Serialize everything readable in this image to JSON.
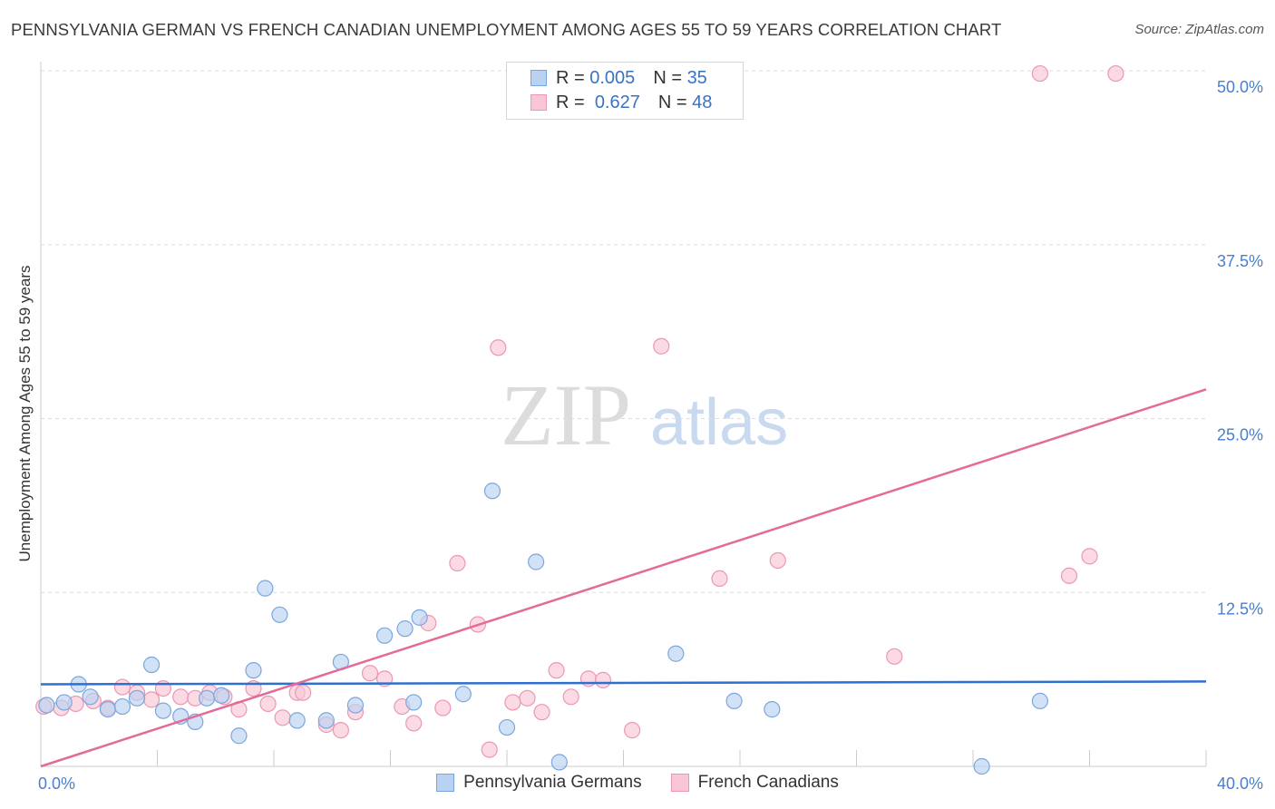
{
  "title": "PENNSYLVANIA GERMAN VS FRENCH CANADIAN UNEMPLOYMENT AMONG AGES 55 TO 59 YEARS CORRELATION CHART",
  "source": "Source: ZipAtlas.com",
  "watermark": {
    "zip": "ZIP",
    "atlas": "atlas"
  },
  "colors": {
    "blue_fill": "#b9d2f1",
    "blue_stroke": "#7ba6dc",
    "blue_line": "#2f6fcf",
    "pink_fill": "#f9c6d6",
    "pink_stroke": "#ec97b4",
    "pink_line": "#e36a99",
    "grid": "#dddddd",
    "tick_text": "#4a7fc9"
  },
  "legend": {
    "rows": [
      {
        "r_label": "R =",
        "r_value": "0.005",
        "n_label": "N =",
        "n_value": "35"
      },
      {
        "r_label": "R =",
        "r_value": "0.627",
        "n_label": "N =",
        "n_value": "48"
      }
    ]
  },
  "chart_data": {
    "type": "scatter",
    "xlabel": "",
    "ylabel": "Unemployment Among Ages 55 to 59 years",
    "xlim": [
      0,
      40
    ],
    "ylim": [
      0,
      50
    ],
    "x_tick_labels": [
      "0.0%",
      "40.0%"
    ],
    "y_ticks": [
      12.5,
      25.0,
      37.5,
      50.0
    ],
    "y_tick_labels": [
      "12.5%",
      "25.0%",
      "37.5%",
      "50.0%"
    ],
    "grid": "horizontal dashed",
    "legend_placement": "top-center and bottom",
    "series": [
      {
        "name": "Pennsylvania Germans",
        "trend": {
          "x0": 0,
          "y0": 5.9,
          "x1": 40,
          "y1": 6.1
        },
        "points": [
          [
            0.2,
            4.4
          ],
          [
            0.8,
            4.6
          ],
          [
            1.3,
            5.9
          ],
          [
            1.7,
            5.0
          ],
          [
            2.3,
            4.1
          ],
          [
            2.8,
            4.3
          ],
          [
            3.3,
            4.9
          ],
          [
            3.8,
            7.3
          ],
          [
            4.2,
            4.0
          ],
          [
            4.8,
            3.6
          ],
          [
            5.3,
            3.2
          ],
          [
            5.7,
            4.9
          ],
          [
            6.2,
            5.1
          ],
          [
            6.8,
            2.2
          ],
          [
            7.3,
            6.9
          ],
          [
            7.7,
            12.8
          ],
          [
            8.2,
            10.9
          ],
          [
            8.8,
            3.3
          ],
          [
            9.8,
            3.3
          ],
          [
            10.3,
            7.5
          ],
          [
            10.8,
            4.4
          ],
          [
            11.8,
            9.4
          ],
          [
            12.5,
            9.9
          ],
          [
            12.8,
            4.6
          ],
          [
            13.0,
            10.7
          ],
          [
            14.5,
            5.2
          ],
          [
            15.5,
            19.8
          ],
          [
            16.0,
            2.8
          ],
          [
            17.0,
            14.7
          ],
          [
            17.8,
            0.3
          ],
          [
            21.8,
            8.1
          ],
          [
            23.8,
            4.7
          ],
          [
            25.1,
            4.1
          ],
          [
            32.3,
            0.0
          ],
          [
            34.3,
            4.7
          ]
        ]
      },
      {
        "name": "French Canadians",
        "trend": {
          "x0": 0,
          "y0": -0.3,
          "x1": 40,
          "y1": 27.1
        },
        "points": [
          [
            0.1,
            4.3
          ],
          [
            0.7,
            4.2
          ],
          [
            1.2,
            4.5
          ],
          [
            1.8,
            4.7
          ],
          [
            2.3,
            4.2
          ],
          [
            2.8,
            5.7
          ],
          [
            3.3,
            5.3
          ],
          [
            3.8,
            4.8
          ],
          [
            4.2,
            5.6
          ],
          [
            4.8,
            5.0
          ],
          [
            5.3,
            4.9
          ],
          [
            5.8,
            5.3
          ],
          [
            6.3,
            5.0
          ],
          [
            6.8,
            4.1
          ],
          [
            7.3,
            5.6
          ],
          [
            7.8,
            4.5
          ],
          [
            8.3,
            3.5
          ],
          [
            8.8,
            5.3
          ],
          [
            9.0,
            5.3
          ],
          [
            9.8,
            3.0
          ],
          [
            10.3,
            2.6
          ],
          [
            10.8,
            3.9
          ],
          [
            11.3,
            6.7
          ],
          [
            11.8,
            6.3
          ],
          [
            12.4,
            4.3
          ],
          [
            12.8,
            3.1
          ],
          [
            13.3,
            10.3
          ],
          [
            13.8,
            4.2
          ],
          [
            14.3,
            14.6
          ],
          [
            15.0,
            10.2
          ],
          [
            15.4,
            1.2
          ],
          [
            15.7,
            30.1
          ],
          [
            16.2,
            4.6
          ],
          [
            16.7,
            4.9
          ],
          [
            17.2,
            3.9
          ],
          [
            17.7,
            6.9
          ],
          [
            18.2,
            5.0
          ],
          [
            18.8,
            6.3
          ],
          [
            19.3,
            6.2
          ],
          [
            20.3,
            2.6
          ],
          [
            21.3,
            30.2
          ],
          [
            23.3,
            13.5
          ],
          [
            25.3,
            14.8
          ],
          [
            29.3,
            7.9
          ],
          [
            34.3,
            49.8
          ],
          [
            35.3,
            13.7
          ],
          [
            36.0,
            15.1
          ],
          [
            36.9,
            49.8
          ]
        ]
      }
    ]
  },
  "bottom_legend": {
    "items": [
      {
        "label": "Pennsylvania Germans"
      },
      {
        "label": "French Canadians"
      }
    ]
  }
}
